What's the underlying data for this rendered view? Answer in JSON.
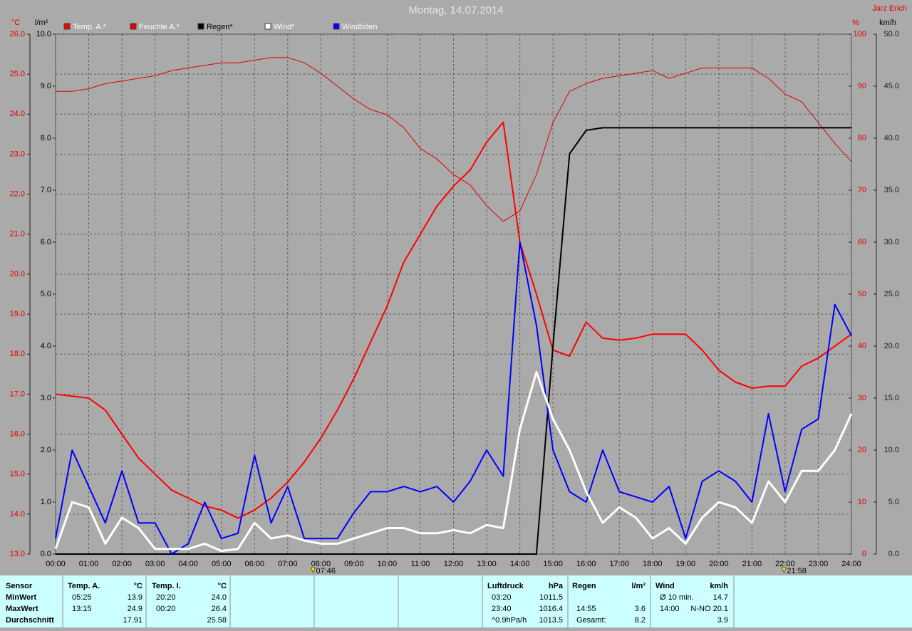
{
  "chart_data": {
    "type": "line",
    "title": "Montag, 14.07.2014",
    "owner": "Jarz Erich",
    "ylabel": "°C",
    "ylim": [
      13,
      26
    ],
    "yticks": [
      {
        "value": 13,
        "label": "13.0"
      },
      {
        "value": 14,
        "label": "14.0"
      },
      {
        "value": 15,
        "label": "15.0"
      },
      {
        "value": 16,
        "label": "16.0"
      },
      {
        "value": 17,
        "label": "17.0"
      },
      {
        "value": 18,
        "label": "18.0"
      },
      {
        "value": 19,
        "label": "19.0"
      },
      {
        "value": 20,
        "label": "20.0"
      },
      {
        "value": 21,
        "label": "21.0"
      },
      {
        "value": 22,
        "label": "22.0"
      },
      {
        "value": 23,
        "label": "23.0"
      },
      {
        "value": 24,
        "label": "24.0"
      },
      {
        "value": 25,
        "label": "25.0"
      },
      {
        "value": 26,
        "label": "26.0"
      }
    ],
    "y2label": "l/m²",
    "y2lim": [
      0,
      10
    ],
    "y2ticks": [
      {
        "value": 0,
        "label": "0.0"
      },
      {
        "value": 1,
        "label": "1.0"
      },
      {
        "value": 2,
        "label": "2.0"
      },
      {
        "value": 3,
        "label": "3.0"
      },
      {
        "value": 4,
        "label": "4.0"
      },
      {
        "value": 5,
        "label": "5.0"
      },
      {
        "value": 6,
        "label": "6.0"
      },
      {
        "value": 7,
        "label": "7.0"
      },
      {
        "value": 8,
        "label": "8.0"
      },
      {
        "value": 9,
        "label": "9.0"
      },
      {
        "value": 10,
        "label": "10.0"
      }
    ],
    "y3label": "%",
    "y3lim": [
      0,
      100
    ],
    "y3ticks": [
      0,
      10,
      20,
      30,
      40,
      50,
      60,
      70,
      80,
      90,
      100
    ],
    "y4label": "km/h",
    "y4lim": [
      0,
      50
    ],
    "y4ticks": [
      {
        "value": 0,
        "label": "0.0"
      },
      {
        "value": 5,
        "label": "5.0"
      },
      {
        "value": 10,
        "label": "10.0"
      },
      {
        "value": 15,
        "label": "15.0"
      },
      {
        "value": 20,
        "label": "20.0"
      },
      {
        "value": 25,
        "label": "25.0"
      },
      {
        "value": 30,
        "label": "30.0"
      },
      {
        "value": 35,
        "label": "35.0"
      },
      {
        "value": 40,
        "label": "40.0"
      },
      {
        "value": 45,
        "label": "45.0"
      },
      {
        "value": 50,
        "label": "50.0"
      }
    ],
    "xlim": [
      0,
      24
    ],
    "xticks": [
      {
        "value": 0,
        "label": "00:00"
      },
      {
        "value": 1,
        "label": "01:00"
      },
      {
        "value": 2,
        "label": "02:00"
      },
      {
        "value": 3,
        "label": "03:00"
      },
      {
        "value": 4,
        "label": "04:00"
      },
      {
        "value": 5,
        "label": "05:00"
      },
      {
        "value": 6,
        "label": "06:00"
      },
      {
        "value": 7,
        "label": "07:00"
      },
      {
        "value": 8,
        "label": "08:00"
      },
      {
        "value": 9,
        "label": "09:00"
      },
      {
        "value": 10,
        "label": "10:00"
      },
      {
        "value": 11,
        "label": "11:00"
      },
      {
        "value": 12,
        "label": "12:00"
      },
      {
        "value": 13,
        "label": "13:00"
      },
      {
        "value": 14,
        "label": "14:00"
      },
      {
        "value": 15,
        "label": "15:00"
      },
      {
        "value": 16,
        "label": "16:00"
      },
      {
        "value": 17,
        "label": "17:00"
      },
      {
        "value": 18,
        "label": "18:00"
      },
      {
        "value": 19,
        "label": "19:00"
      },
      {
        "value": 20,
        "label": "20:00"
      },
      {
        "value": 21,
        "label": "21:00"
      },
      {
        "value": 22,
        "label": "22:00"
      },
      {
        "value": 23,
        "label": "23:00"
      },
      {
        "value": 24,
        "label": "24:00"
      }
    ],
    "grid": true,
    "annotations": [
      {
        "x": 7.767,
        "label": "07:46"
      },
      {
        "x": 21.967,
        "label": "21:58"
      }
    ],
    "x": [
      0,
      0.5,
      1,
      1.5,
      2,
      2.5,
      3,
      3.5,
      4,
      4.5,
      5,
      5.5,
      6,
      6.5,
      7,
      7.5,
      8,
      8.5,
      9,
      9.5,
      10,
      10.5,
      11,
      11.5,
      12,
      12.5,
      13,
      13.5,
      14,
      14.5,
      15,
      15.5,
      16,
      16.5,
      17,
      17.5,
      18,
      18.5,
      19,
      19.5,
      20,
      20.5,
      21,
      21.5,
      22,
      22.5,
      23,
      23.5,
      24
    ],
    "series": [
      {
        "name": "Temp. A.*",
        "color": "#ff0000",
        "axis": "y",
        "width": 2,
        "values": [
          17.0,
          16.95,
          16.9,
          16.6,
          16.0,
          15.4,
          15.0,
          14.6,
          14.4,
          14.2,
          14.1,
          13.9,
          14.1,
          14.4,
          14.8,
          15.3,
          15.9,
          16.6,
          17.4,
          18.3,
          19.2,
          20.3,
          21.0,
          21.7,
          22.2,
          22.6,
          23.3,
          23.8,
          20.8,
          19.5,
          18.1,
          17.95,
          18.8,
          18.4,
          18.35,
          18.4,
          18.5,
          18.5,
          18.5,
          18.1,
          17.6,
          17.3,
          17.15,
          17.2,
          17.2,
          17.7,
          17.9,
          18.2,
          18.5
        ]
      },
      {
        "name": "Feuchte A.*",
        "color": "#e00000",
        "axis": "y3",
        "width": 1,
        "values": [
          89,
          89,
          89.5,
          90.5,
          91,
          91.5,
          92,
          93,
          93.5,
          94,
          94.5,
          94.5,
          95,
          95.5,
          95.5,
          94.5,
          92.5,
          90,
          87.5,
          85.5,
          84.5,
          82,
          78,
          76,
          73,
          71,
          67,
          64,
          66,
          73,
          83,
          89,
          90.5,
          91.5,
          92,
          92.5,
          93,
          91.5,
          92.5,
          93.5,
          93.5,
          93.5,
          93.5,
          91.5,
          88.5,
          87,
          83,
          79,
          75.5
        ]
      },
      {
        "name": "Regen*",
        "color": "#000000",
        "axis": "y2",
        "width": 2,
        "values": [
          0,
          0,
          0,
          0,
          0,
          0,
          0,
          0,
          0,
          0,
          0,
          0,
          0,
          0,
          0,
          0,
          0,
          0,
          0,
          0,
          0,
          0,
          0,
          0,
          0,
          0,
          0,
          0,
          0,
          0,
          4.0,
          7.7,
          8.15,
          8.2,
          8.2,
          8.2,
          8.2,
          8.2,
          8.2,
          8.2,
          8.2,
          8.2,
          8.2,
          8.2,
          8.2,
          8.2,
          8.2,
          8.2,
          8.2
        ]
      },
      {
        "name": "Wind*",
        "color": "#ffffff",
        "axis": "y4",
        "width": 3,
        "values": [
          0.5,
          5.0,
          4.5,
          1.0,
          3.5,
          2.5,
          0.5,
          0.5,
          0.5,
          1.0,
          0.3,
          0.5,
          3.0,
          1.5,
          1.8,
          1.3,
          1.0,
          1.0,
          1.5,
          2.0,
          2.5,
          2.5,
          2.0,
          2.0,
          2.3,
          2.0,
          2.8,
          2.5,
          12,
          17.5,
          13,
          10,
          6,
          3,
          4.5,
          3.5,
          1.5,
          2.5,
          1,
          3.5,
          5,
          4.5,
          3,
          7,
          5,
          8,
          8,
          10,
          13.5
        ]
      },
      {
        "name": "Windböen",
        "color": "#0000ff",
        "axis": "y4",
        "width": 2,
        "values": [
          1.5,
          10,
          6.5,
          3,
          8,
          3,
          3,
          0,
          1,
          5,
          1.5,
          2,
          9.5,
          3,
          6.5,
          1.5,
          1.5,
          1.5,
          4,
          6,
          6,
          6.5,
          6,
          6.5,
          5,
          7,
          10,
          7.5,
          30,
          22,
          10,
          6,
          5,
          10,
          6,
          5.5,
          5,
          6.5,
          1.5,
          7,
          8,
          7,
          5,
          13.5,
          6,
          12,
          13,
          24,
          21
        ]
      }
    ]
  },
  "footer": {
    "row_labels": [
      "Sensor",
      "MinWert",
      "MaxWert",
      "Durchschnitt"
    ],
    "panels": [
      {
        "header": [
          "Temp. A.",
          "°C"
        ],
        "rows": [
          [
            "05:25",
            "13.9"
          ],
          [
            "13:15",
            "24.9"
          ],
          [
            null,
            "17.91"
          ]
        ]
      },
      {
        "header": [
          "Temp. I.",
          "°C"
        ],
        "rows": [
          [
            "20:20",
            "24.0"
          ],
          [
            "00:20",
            "26.4"
          ],
          [
            null,
            "25.58"
          ]
        ]
      },
      {
        "header": [
          "Luftdruck",
          "hPa"
        ],
        "rows": [
          [
            "03:20",
            "1011.5"
          ],
          [
            "23:40",
            "1016.4"
          ],
          [
            "^0.9hPa/h",
            "1013.5"
          ]
        ]
      },
      {
        "header": [
          "Regen",
          "l/m²"
        ],
        "rows": [
          [
            null,
            null
          ],
          [
            "14:55",
            "3.6"
          ],
          [
            "Gesamt:",
            "8.2"
          ]
        ]
      },
      {
        "header": [
          "Wind",
          "km/h"
        ],
        "rows": [
          [
            "Ø 10 min.",
            "14.7"
          ],
          [
            "14:00",
            "N-NO 20.1"
          ],
          [
            null,
            "3.9"
          ]
        ]
      }
    ]
  }
}
